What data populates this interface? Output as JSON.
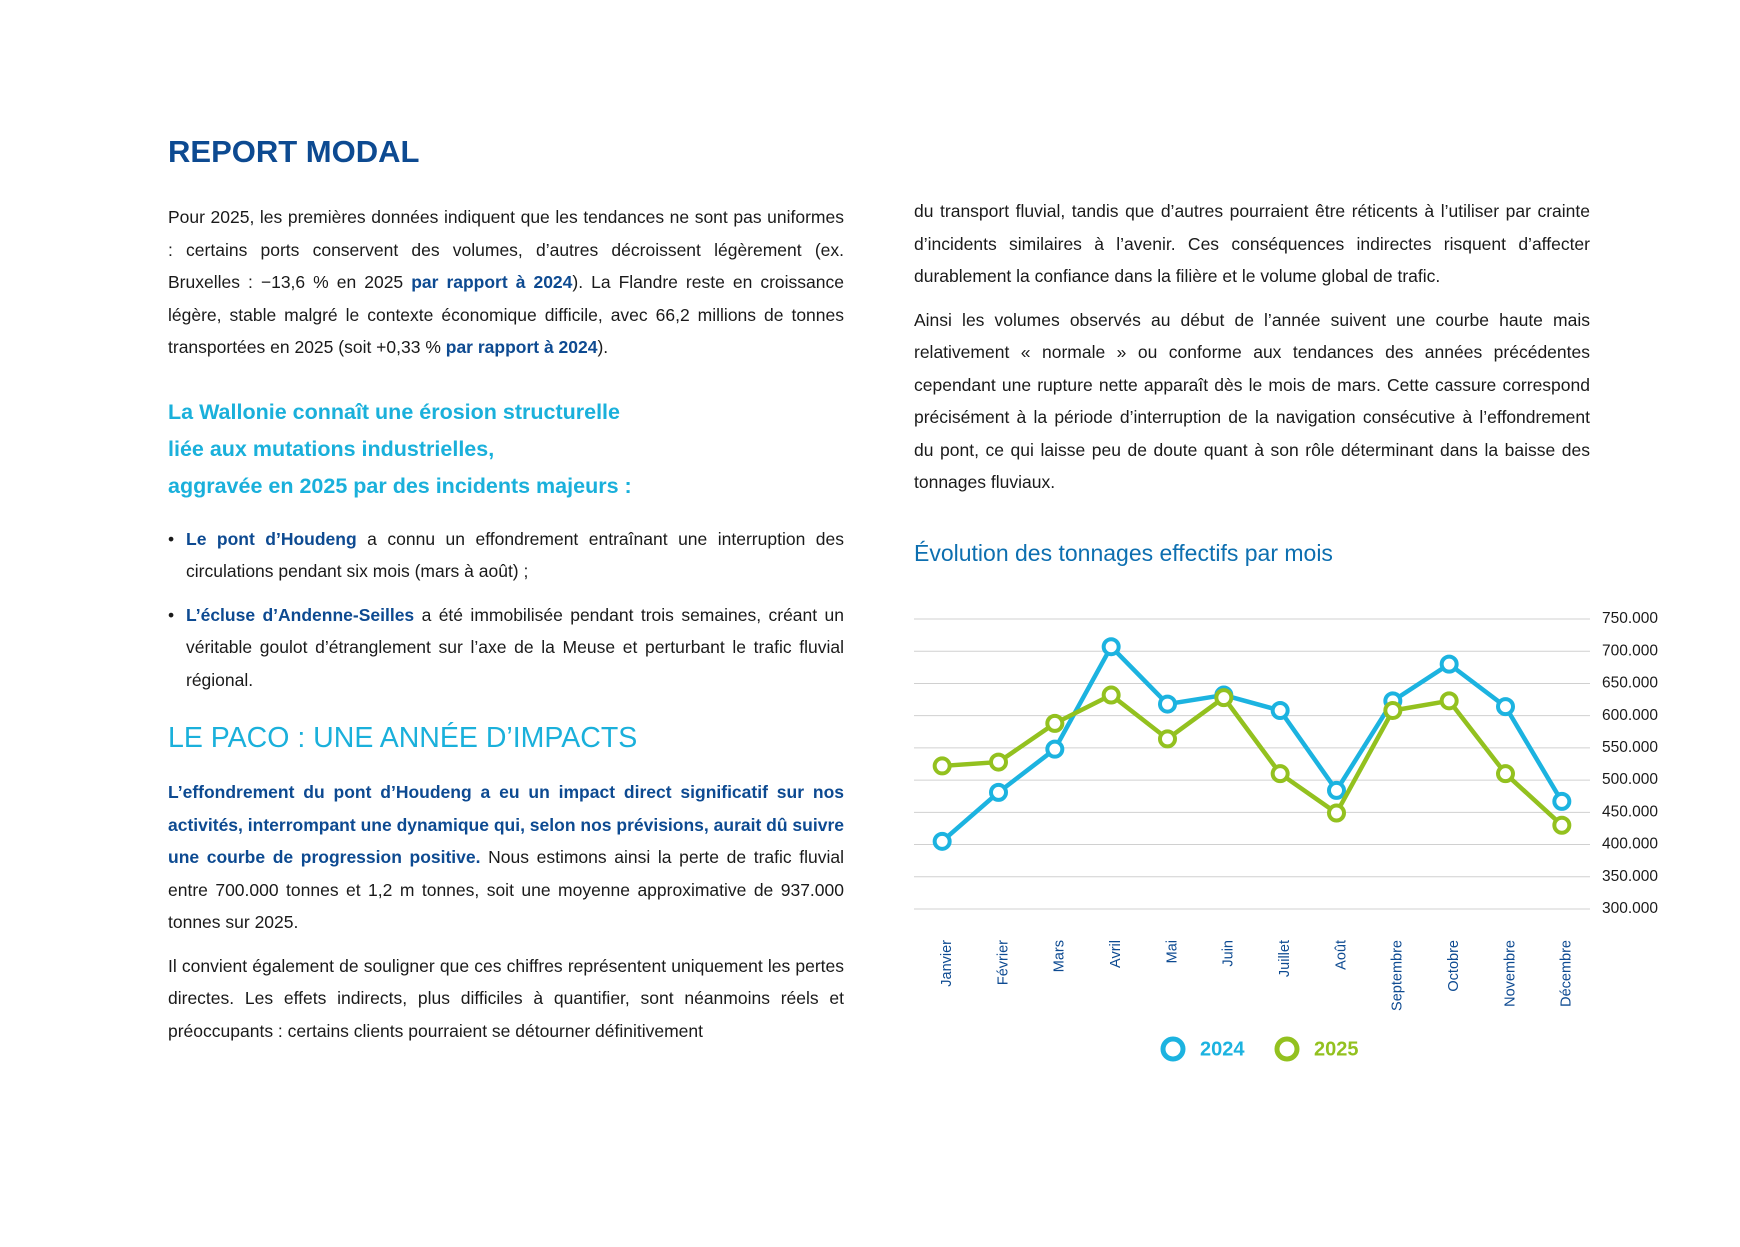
{
  "header": {
    "title": "REPORT MODAL"
  },
  "left": {
    "p1": [
      "Pour 2025, les premières données indiquent que les tendances ne sont pas uniformes : certains ports conservent des volumes, d’autres décroissent légèrement (ex. Bruxelles : −13,6 % en 2025 ",
      "par rapport à 2024",
      "). La Flandre reste en croissance légère, stable malgré le contexte économique difficile, avec 66,2 millions de tonnes transportées en 2025 (soit +0,33 % ",
      "par rapport à 2024",
      ")."
    ],
    "subtitle": [
      "La Wallonie connaît une érosion structurelle",
      "liée aux mutations industrielles,",
      "aggravée en 2025 par des incidents majeurs :"
    ],
    "bullets": [
      [
        "Le pont d’Houdeng",
        " a connu un effondrement entraînant une interruption des circulations pendant six mois (mars à août) ;"
      ],
      [
        "L’écluse d’Andenne-Seilles",
        " a été immobilisée pendant trois semaines, créant un véritable goulot d’étranglement sur l’axe de la Meuse et perturbant le trafic fluvial régional."
      ]
    ],
    "section_title": "LE PACO : UNE ANNÉE D’IMPACTS",
    "p2": [
      "L’effondrement du pont d’Houdeng a eu un impact direct significatif sur nos activités, interrompant une dynamique qui, selon nos prévisions, aurait dû suivre une courbe de progression positive.",
      " Nous estimons ainsi la perte de trafic fluvial entre 700.000 tonnes et 1,2 m tonnes, soit une moyenne approximative de 937.000 tonnes sur 2025."
    ],
    "p3": "Il convient également de souligner que ces chiffres représentent uniquement les pertes directes. Les effets indirects, plus difficiles à quantifier, sont néanmoins réels et préoccupants : certains clients pourraient se détourner définitivement"
  },
  "right": {
    "p3_continued": "du transport fluvial, tandis que d’autres pourraient être réticents à l’utiliser par crainte d’incidents similaires à l’avenir. Ces conséquences indirectes risquent d’affecter durablement la confiance dans la filière et le volume global de trafic.",
    "p4": "Ainsi les volumes observés au début de l’année suivent une courbe haute mais relativement « normale » ou conforme aux tendances des années précédentes cependant  une rupture nette apparaît dès le mois de mars. Cette cassure correspond précisément à la période d’interruption de la navigation consécutive à l’effondrement du pont, ce qui laisse peu de doute quant à son rôle déterminant dans la baisse des tonnages fluviaux."
  },
  "chart_data": {
    "type": "line",
    "title": "Évolution des tonnages effectifs par mois",
    "categories": [
      "Janvier",
      "Février",
      "Mars",
      "Avril",
      "Mai",
      "Juin",
      "Juillet",
      "Août",
      "Septembre",
      "Octobre",
      "Novembre",
      "Décembre"
    ],
    "series": [
      {
        "name": "2024",
        "color": "#1cb3e0",
        "values": [
          405000,
          481000,
          548000,
          707000,
          618000,
          632000,
          608000,
          484000,
          623000,
          680000,
          614000,
          467000
        ]
      },
      {
        "name": "2025",
        "color": "#93c11f",
        "values": [
          522000,
          528000,
          588000,
          632000,
          564000,
          628000,
          510000,
          449000,
          608000,
          623000,
          510000,
          430000
        ]
      }
    ],
    "ylim": [
      300000,
      750000
    ],
    "yticks": [
      {
        "value": 300000,
        "label": "300.000"
      },
      {
        "value": 350000,
        "label": "350.000"
      },
      {
        "value": 400000,
        "label": "400.000"
      },
      {
        "value": 450000,
        "label": "450.000"
      },
      {
        "value": 500000,
        "label": "500.000"
      },
      {
        "value": 550000,
        "label": "550.000"
      },
      {
        "value": 600000,
        "label": "600.000"
      },
      {
        "value": 650000,
        "label": "650.000"
      },
      {
        "value": 700000,
        "label": "700.000"
      },
      {
        "value": 750000,
        "label": "750.000"
      }
    ],
    "grid": true,
    "legend": "bottom"
  }
}
